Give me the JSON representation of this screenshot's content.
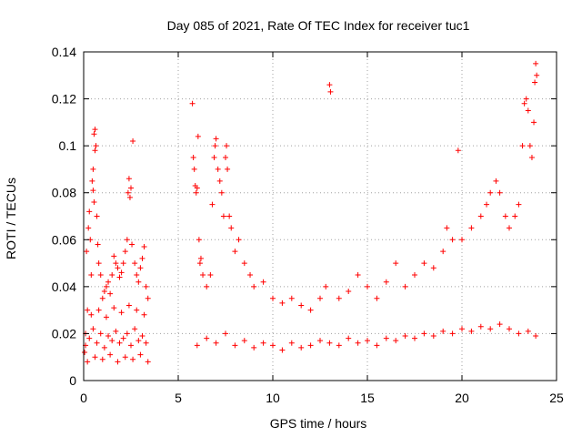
{
  "chart_data": {
    "type": "scatter",
    "title": "Day 085 of 2021, Rate Of TEC Index for receiver tuc1",
    "xlabel": "GPS time / hours",
    "ylabel": "ROTI / TECUs",
    "xlim": [
      0,
      25
    ],
    "ylim": [
      0,
      0.14
    ],
    "xticks": [
      "0",
      "5",
      "10",
      "15",
      "20",
      "25"
    ],
    "yticks": [
      "0",
      "0.02",
      "0.04",
      "0.06",
      "0.08",
      "0.1",
      "0.12",
      "0.14"
    ],
    "xtick_values": [
      0,
      5,
      10,
      15,
      20,
      25
    ],
    "ytick_values": [
      0,
      0.02,
      0.04,
      0.06,
      0.08,
      0.1,
      0.12,
      0.14
    ],
    "grid": true,
    "marker": "+",
    "color": "#ff0000",
    "series": [
      {
        "points": [
          [
            0.05,
            0.012
          ],
          [
            0.1,
            0.02
          ],
          [
            0.15,
            0.055
          ],
          [
            0.2,
            0.03
          ],
          [
            0.25,
            0.065
          ],
          [
            0.3,
            0.072
          ],
          [
            0.35,
            0.06
          ],
          [
            0.4,
            0.045
          ],
          [
            0.45,
            0.085
          ],
          [
            0.5,
            0.09
          ],
          [
            0.5,
            0.081
          ],
          [
            0.55,
            0.076
          ],
          [
            0.55,
            0.105
          ],
          [
            0.6,
            0.107
          ],
          [
            0.6,
            0.098
          ],
          [
            0.65,
            0.1
          ],
          [
            0.7,
            0.07
          ],
          [
            0.75,
            0.058
          ],
          [
            0.8,
            0.05
          ],
          [
            0.9,
            0.045
          ],
          [
            1.0,
            0.035
          ],
          [
            1.1,
            0.038
          ],
          [
            1.2,
            0.04
          ],
          [
            1.3,
            0.042
          ],
          [
            1.4,
            0.037
          ],
          [
            1.5,
            0.045
          ],
          [
            1.6,
            0.053
          ],
          [
            1.7,
            0.05
          ],
          [
            1.8,
            0.048
          ],
          [
            1.9,
            0.044
          ],
          [
            2.0,
            0.046
          ],
          [
            2.1,
            0.05
          ],
          [
            2.2,
            0.055
          ],
          [
            2.3,
            0.06
          ],
          [
            2.35,
            0.08
          ],
          [
            2.4,
            0.086
          ],
          [
            2.45,
            0.078
          ],
          [
            2.5,
            0.082
          ],
          [
            2.55,
            0.058
          ],
          [
            2.6,
            0.102
          ],
          [
            2.7,
            0.05
          ],
          [
            2.8,
            0.045
          ],
          [
            2.9,
            0.042
          ],
          [
            3.0,
            0.048
          ],
          [
            3.1,
            0.052
          ],
          [
            3.2,
            0.057
          ],
          [
            3.3,
            0.04
          ],
          [
            3.4,
            0.035
          ],
          [
            0.1,
            0.015
          ],
          [
            0.3,
            0.018
          ],
          [
            0.5,
            0.022
          ],
          [
            0.7,
            0.016
          ],
          [
            0.9,
            0.02
          ],
          [
            1.1,
            0.014
          ],
          [
            1.3,
            0.019
          ],
          [
            1.5,
            0.017
          ],
          [
            1.7,
            0.021
          ],
          [
            1.9,
            0.016
          ],
          [
            2.1,
            0.018
          ],
          [
            2.3,
            0.02
          ],
          [
            2.5,
            0.015
          ],
          [
            2.7,
            0.022
          ],
          [
            2.9,
            0.017
          ],
          [
            3.1,
            0.019
          ],
          [
            3.3,
            0.016
          ],
          [
            0.2,
            0.008
          ],
          [
            0.6,
            0.01
          ],
          [
            1.0,
            0.009
          ],
          [
            1.4,
            0.011
          ],
          [
            1.8,
            0.008
          ],
          [
            2.2,
            0.01
          ],
          [
            2.6,
            0.009
          ],
          [
            3.0,
            0.011
          ],
          [
            3.4,
            0.008
          ],
          [
            0.4,
            0.028
          ],
          [
            0.8,
            0.03
          ],
          [
            1.2,
            0.027
          ],
          [
            1.6,
            0.031
          ],
          [
            2.0,
            0.029
          ],
          [
            2.4,
            0.032
          ],
          [
            2.8,
            0.03
          ],
          [
            3.2,
            0.028
          ],
          [
            5.75,
            0.118
          ],
          [
            5.8,
            0.095
          ],
          [
            5.85,
            0.09
          ],
          [
            5.9,
            0.083
          ],
          [
            5.95,
            0.08
          ],
          [
            6.0,
            0.082
          ],
          [
            6.05,
            0.104
          ],
          [
            6.1,
            0.06
          ],
          [
            6.15,
            0.05
          ],
          [
            6.2,
            0.052
          ],
          [
            6.3,
            0.045
          ],
          [
            6.5,
            0.04
          ],
          [
            6.7,
            0.045
          ],
          [
            6.8,
            0.075
          ],
          [
            6.9,
            0.095
          ],
          [
            6.95,
            0.1
          ],
          [
            7.0,
            0.103
          ],
          [
            7.1,
            0.09
          ],
          [
            7.2,
            0.085
          ],
          [
            7.3,
            0.08
          ],
          [
            7.4,
            0.07
          ],
          [
            7.5,
            0.095
          ],
          [
            7.55,
            0.1
          ],
          [
            7.6,
            0.09
          ],
          [
            7.7,
            0.07
          ],
          [
            7.8,
            0.065
          ],
          [
            8.0,
            0.055
          ],
          [
            8.2,
            0.06
          ],
          [
            8.5,
            0.05
          ],
          [
            8.8,
            0.045
          ],
          [
            9.0,
            0.04
          ],
          [
            9.5,
            0.042
          ],
          [
            10.0,
            0.035
          ],
          [
            10.5,
            0.033
          ],
          [
            11.0,
            0.035
          ],
          [
            11.5,
            0.032
          ],
          [
            12.0,
            0.03
          ],
          [
            12.5,
            0.035
          ],
          [
            12.8,
            0.04
          ],
          [
            13.0,
            0.126
          ],
          [
            13.05,
            0.123
          ],
          [
            13.5,
            0.035
          ],
          [
            14.0,
            0.038
          ],
          [
            14.5,
            0.045
          ],
          [
            15.0,
            0.04
          ],
          [
            15.5,
            0.035
          ],
          [
            16.0,
            0.042
          ],
          [
            16.5,
            0.05
          ],
          [
            17.0,
            0.04
          ],
          [
            17.5,
            0.045
          ],
          [
            18.0,
            0.05
          ],
          [
            18.5,
            0.048
          ],
          [
            19.0,
            0.055
          ],
          [
            19.2,
            0.065
          ],
          [
            19.5,
            0.06
          ],
          [
            19.8,
            0.098
          ],
          [
            20.0,
            0.06
          ],
          [
            20.5,
            0.065
          ],
          [
            21.0,
            0.07
          ],
          [
            21.3,
            0.075
          ],
          [
            21.5,
            0.08
          ],
          [
            21.8,
            0.085
          ],
          [
            22.0,
            0.08
          ],
          [
            22.3,
            0.07
          ],
          [
            22.5,
            0.065
          ],
          [
            22.8,
            0.07
          ],
          [
            23.0,
            0.075
          ],
          [
            23.2,
            0.1
          ],
          [
            23.3,
            0.118
          ],
          [
            23.4,
            0.12
          ],
          [
            23.5,
            0.115
          ],
          [
            23.6,
            0.1
          ],
          [
            23.7,
            0.095
          ],
          [
            23.8,
            0.11
          ],
          [
            23.85,
            0.127
          ],
          [
            23.9,
            0.135
          ],
          [
            23.95,
            0.13
          ],
          [
            6.0,
            0.015
          ],
          [
            6.5,
            0.018
          ],
          [
            7.0,
            0.016
          ],
          [
            7.5,
            0.02
          ],
          [
            8.0,
            0.015
          ],
          [
            8.5,
            0.017
          ],
          [
            9.0,
            0.014
          ],
          [
            9.5,
            0.016
          ],
          [
            10.0,
            0.015
          ],
          [
            10.5,
            0.013
          ],
          [
            11.0,
            0.016
          ],
          [
            11.5,
            0.014
          ],
          [
            12.0,
            0.015
          ],
          [
            12.5,
            0.017
          ],
          [
            13.0,
            0.016
          ],
          [
            13.5,
            0.015
          ],
          [
            14.0,
            0.018
          ],
          [
            14.5,
            0.016
          ],
          [
            15.0,
            0.017
          ],
          [
            15.5,
            0.015
          ],
          [
            16.0,
            0.018
          ],
          [
            16.5,
            0.017
          ],
          [
            17.0,
            0.019
          ],
          [
            17.5,
            0.018
          ],
          [
            18.0,
            0.02
          ],
          [
            18.5,
            0.019
          ],
          [
            19.0,
            0.021
          ],
          [
            19.5,
            0.02
          ],
          [
            20.0,
            0.022
          ],
          [
            20.5,
            0.021
          ],
          [
            21.0,
            0.023
          ],
          [
            21.5,
            0.022
          ],
          [
            22.0,
            0.024
          ],
          [
            22.5,
            0.022
          ],
          [
            23.0,
            0.02
          ],
          [
            23.5,
            0.021
          ],
          [
            23.9,
            0.019
          ]
        ]
      }
    ]
  }
}
